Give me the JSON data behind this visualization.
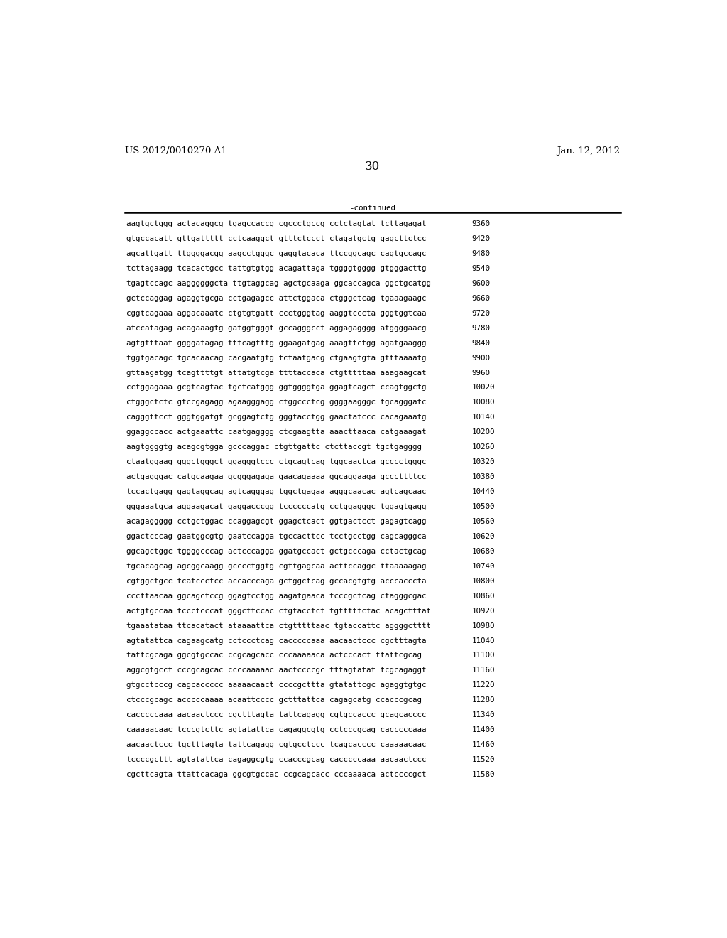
{
  "header_left": "US 2012/0010270 A1",
  "header_right": "Jan. 12, 2012",
  "page_number": "30",
  "continued_label": "-continued",
  "background_color": "#ffffff",
  "text_color": "#000000",
  "font_size_header": 9.5,
  "font_size_body": 7.8,
  "font_size_page": 12,
  "sequence_lines": [
    {
      "seq": "aagtgctggg actacaggcg tgagccaccg cgccctgccg cctctagtat tcttagagat",
      "num": "9360"
    },
    {
      "seq": "gtgccacatt gttgattttt cctcaaggct gtttctccct ctagatgctg gagcttctcc",
      "num": "9420"
    },
    {
      "seq": "agcattgatt ttggggacgg aagcctgggc gaggtacaca ttccggcagc cagtgccagc",
      "num": "9480"
    },
    {
      "seq": "tcttagaagg tcacactgcc tattgtgtgg acagattaga tggggtgggg gtgggacttg",
      "num": "9540"
    },
    {
      "seq": "tgagtccagc aaggggggcta ttgtaggcag agctgcaaga ggcaccagca ggctgcatgg",
      "num": "9600"
    },
    {
      "seq": "gctccaggag agaggtgcga cctgagagcc attctggaca ctgggctcag tgaaagaagc",
      "num": "9660"
    },
    {
      "seq": "cggtcagaaa aggacaaatc ctgtgtgatt ccctgggtag aaggtcccta gggtggtcaa",
      "num": "9720"
    },
    {
      "seq": "atccatagag acagaaagtg gatggtgggt gccagggcct aggagagggg atggggaacg",
      "num": "9780"
    },
    {
      "seq": "agtgtttaat ggggatagag tttcagtttg ggaagatgag aaagttctgg agatgaaggg",
      "num": "9840"
    },
    {
      "seq": "tggtgacagc tgcacaacag cacgaatgtg tctaatgacg ctgaagtgta gtttaaaatg",
      "num": "9900"
    },
    {
      "seq": "gttaagatgg tcagttttgt attatgtcga ttttaccaca ctgtttttaa aaagaagcat",
      "num": "9960"
    },
    {
      "seq": "cctggagaaa gcgtcagtac tgctcatggg ggtggggtga ggagtcagct ccagtggctg",
      "num": "10020"
    },
    {
      "seq": "ctgggctctc gtccgagagg agaagggagg ctggccctcg ggggaagggc tgcagggatc",
      "num": "10080"
    },
    {
      "seq": "cagggttcct gggtggatgt gcggagtctg gggtacctgg gaactatccc cacagaaatg",
      "num": "10140"
    },
    {
      "seq": "ggaggccacc actgaaattc caatgagggg ctcgaagtta aaacttaaca catgaaagat",
      "num": "10200"
    },
    {
      "seq": "aagtggggtg acagcgtgga gcccaggac ctgttgattc ctcttaccgt tgctgagggg",
      "num": "10260"
    },
    {
      "seq": "ctaatggaag gggctgggct ggagggtccc ctgcagtcag tggcaactca gcccctgggc",
      "num": "10320"
    },
    {
      "seq": "actgagggac catgcaagaa gcgggagaga gaacagaaaa ggcaggaaga gcccttttcc",
      "num": "10380"
    },
    {
      "seq": "tccactgagg gagtaggcag agtcagggag tggctgagaa agggcaacac agtcagcaac",
      "num": "10440"
    },
    {
      "seq": "gggaaatgca aggaagacat gaggacccgg tccccccatg cctggagggc tggagtgagg",
      "num": "10500"
    },
    {
      "seq": "acagaggggg cctgctggac ccaggagcgt ggagctcact ggtgactcct gagagtcagg",
      "num": "10560"
    },
    {
      "seq": "ggactcccag gaatggcgtg gaatccagga tgccacttcc tcctgcctgg cagcagggca",
      "num": "10620"
    },
    {
      "seq": "ggcagctggc tggggcccag actcccagga ggatgccact gctgcccaga cctactgcag",
      "num": "10680"
    },
    {
      "seq": "tgcacagcag agcggcaagg gcccctggtg cgttgagcaa acttccaggc ttaaaaagag",
      "num": "10740"
    },
    {
      "seq": "cgtggctgcc tcatccctcc accacccaga gctggctcag gccacgtgtg acccacccta",
      "num": "10800"
    },
    {
      "seq": "cccttaacaa ggcagctccg ggagtcctgg aagatgaaca tcccgctcag ctagggcgac",
      "num": "10860"
    },
    {
      "seq": "actgtgccaa tccctcccat gggcttccac ctgtacctct tgtttttctac acagctttat",
      "num": "10920"
    },
    {
      "seq": "tgaaatataa ttcacatact ataaaattca ctgtttttaac tgtaccattc aggggctttt",
      "num": "10980"
    },
    {
      "seq": "agtatattca cagaagcatg cctccctcag cacccccaaa aacaactccc cgctttagta",
      "num": "11040"
    },
    {
      "seq": "tattcgcaga ggcgtgccac ccgcagcacc cccaaaaaca actcccact ttattcgcag",
      "num": "11100"
    },
    {
      "seq": "aggcgtgcct cccgcagcac ccccaaaaac aactccccgc tttagtatat tcgcagaggt",
      "num": "11160"
    },
    {
      "seq": "gtgcctcccg cagcaccccc aaaaacaact ccccgcttta gtatattcgc agaggtgtgc",
      "num": "11220"
    },
    {
      "seq": "ctcccgcagc acccccaaaa acaattcccc gctttattca cagagcatg ccacccgcag",
      "num": "11280"
    },
    {
      "seq": "cacccccaaa aacaactccc cgctttagta tattcagagg cgtgccaccc gcagcacccc",
      "num": "11340"
    },
    {
      "seq": "caaaaacaac tcccgtcttc agtatattca cagaggcgtg cctcccgcag cacccccaaa",
      "num": "11400"
    },
    {
      "seq": "aacaactccc tgctttagta tattcagagg cgtgcctccc tcagcacccc caaaaacaac",
      "num": "11460"
    },
    {
      "seq": "tccccgcttt agtatattca cagaggcgtg ccacccgcag cacccccaaa aacaactccc",
      "num": "11520"
    },
    {
      "seq": "cgcttcagta ttattcacaga ggcgtgccac ccgcagcacc cccaaaaca actccccgct",
      "num": "11580"
    }
  ]
}
